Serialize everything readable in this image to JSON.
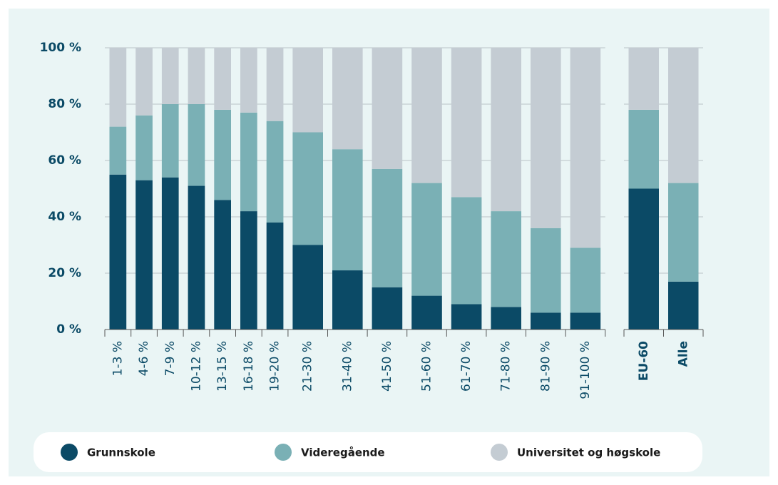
{
  "chart_data": [
    {
      "type": "bar",
      "stacked": true,
      "categories": [
        "1-3 %",
        "4-6 %",
        "7-9 %",
        "10-12 %",
        "13-15 %",
        "16-18 %",
        "19-20 %",
        "21-30 %",
        "31-40 %",
        "41-50 %",
        "51-60 %",
        "61-70 %",
        "71-80 %",
        "81-90 %",
        "91-100 %"
      ],
      "series": [
        {
          "name": "Grunnskole",
          "color": "#0b4a66",
          "values": [
            55,
            53,
            54,
            51,
            46,
            42,
            38,
            30,
            21,
            15,
            12,
            9,
            8,
            6,
            6
          ]
        },
        {
          "name": "Videregående",
          "color": "#7ab0b5",
          "values": [
            17,
            23,
            26,
            29,
            32,
            35,
            36,
            40,
            43,
            42,
            40,
            38,
            34,
            30,
            23
          ]
        },
        {
          "name": "Universitet og høgskole",
          "color": "#c4ccd3",
          "values": [
            28,
            24,
            20,
            20,
            22,
            23,
            26,
            30,
            36,
            43,
            48,
            53,
            58,
            64,
            71
          ]
        }
      ],
      "ylim": [
        0,
        100
      ],
      "yticks": [
        {
          "value": 0,
          "label": "0 %"
        },
        {
          "value": 20,
          "label": "20 %"
        },
        {
          "value": 40,
          "label": "40 %"
        },
        {
          "value": 60,
          "label": "60 %"
        },
        {
          "value": 80,
          "label": "80 %"
        },
        {
          "value": 100,
          "label": "100 %"
        }
      ],
      "grid": true
    },
    {
      "type": "bar",
      "stacked": true,
      "categories": [
        "EU-60",
        "Alle"
      ],
      "series": [
        {
          "name": "Grunnskole",
          "color": "#0b4a66",
          "values": [
            50,
            17
          ]
        },
        {
          "name": "Videregående",
          "color": "#7ab0b5",
          "values": [
            28,
            35
          ]
        },
        {
          "name": "Universitet og høgskole",
          "color": "#c4ccd3",
          "values": [
            22,
            48
          ]
        }
      ],
      "ylim": [
        0,
        100
      ],
      "yticks": [
        0,
        20,
        40,
        60,
        80,
        100
      ],
      "grid": true
    }
  ]
}
